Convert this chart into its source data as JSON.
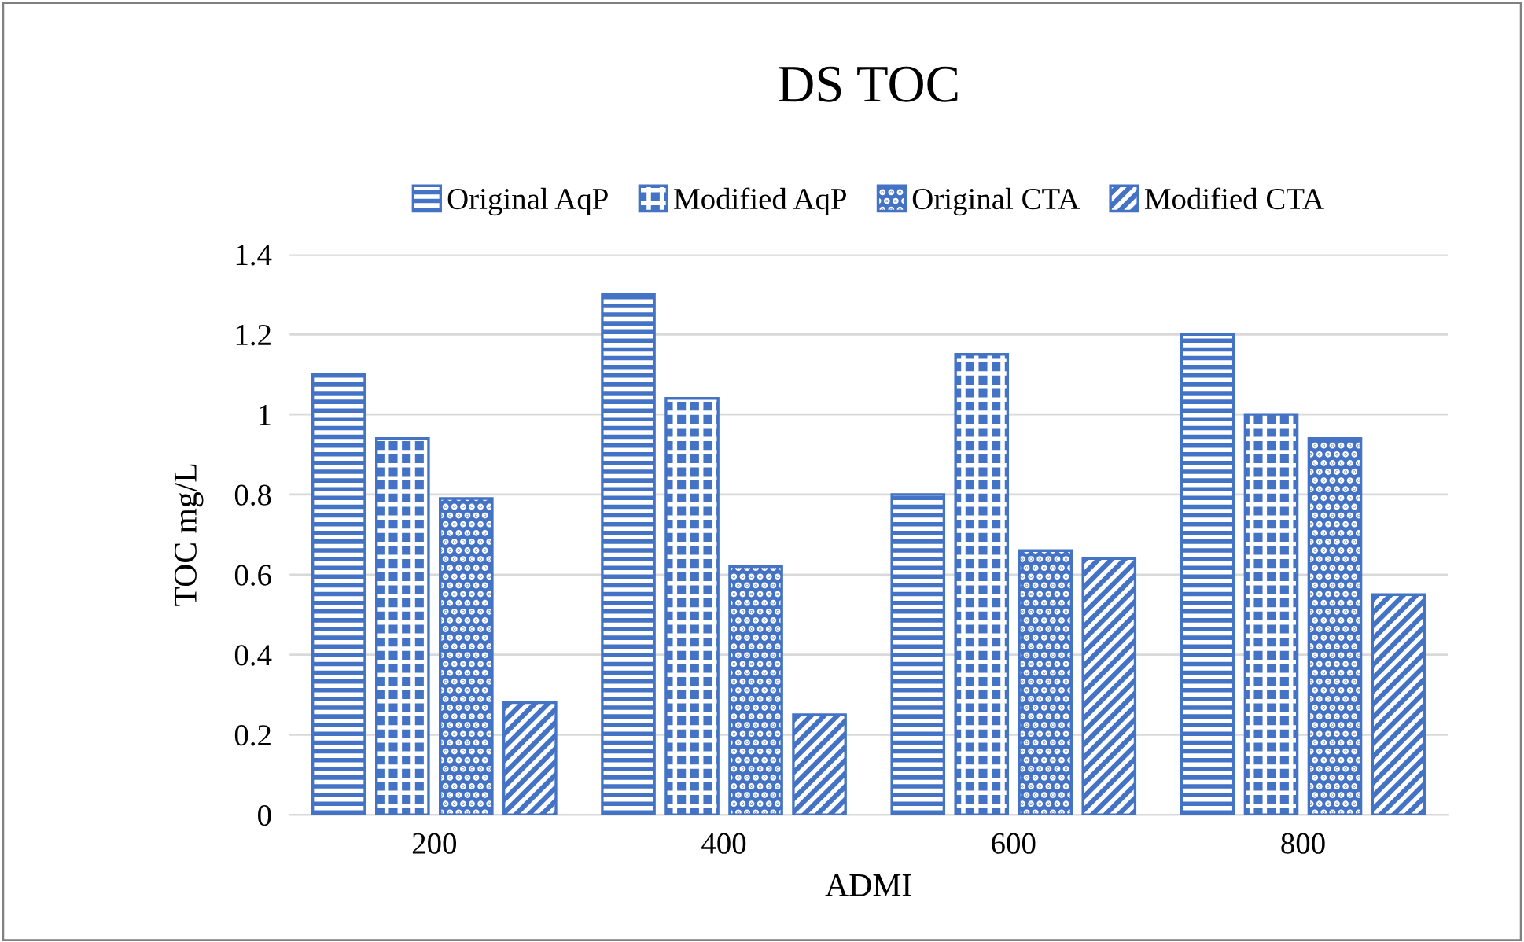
{
  "chart_data": {
    "type": "bar",
    "title": "DS TOC",
    "xlabel": "ADMI",
    "ylabel": "TOC mg/L",
    "categories": [
      "200",
      "400",
      "600",
      "800"
    ],
    "series": [
      {
        "name": "Original AqP",
        "color": "#4472c4",
        "values": [
          1.1,
          1.3,
          0.8,
          1.2
        ]
      },
      {
        "name": "Modified AqP",
        "color": "#4472c4",
        "values": [
          0.94,
          1.04,
          1.15,
          1.0
        ]
      },
      {
        "name": "Original CTA",
        "color": "#4472c4",
        "values": [
          0.79,
          0.62,
          0.66,
          0.94
        ]
      },
      {
        "name": "Modified CTA",
        "color": "#4472c4",
        "values": [
          0.28,
          0.25,
          0.64,
          0.55
        ]
      }
    ],
    "ylim": [
      0,
      1.4
    ],
    "yticks": [
      0,
      0.2,
      0.4,
      0.6,
      0.8,
      1,
      1.2,
      1.4
    ],
    "grid": "y",
    "legend": "top"
  }
}
